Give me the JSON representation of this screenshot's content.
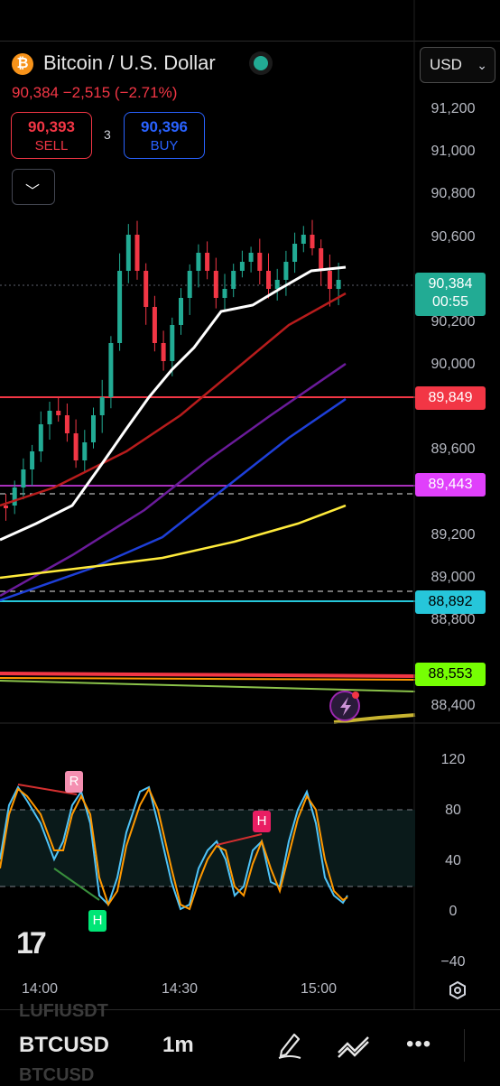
{
  "header": {
    "title": "Bitcoin / U.S. Dollar",
    "coin_symbol": "₿",
    "price_line": "90,384  −2,515 (−2.71%)",
    "currency": "USD"
  },
  "trade": {
    "sell_price": "90,393",
    "sell_label": "SELL",
    "spread": "3",
    "buy_price": "90,396",
    "buy_label": "BUY"
  },
  "price_axis": [
    "91,200",
    "91,000",
    "90,800",
    "90,600",
    "90,200",
    "90,000",
    "89,600",
    "89,200",
    "89,000",
    "88,800",
    "88,400"
  ],
  "price_tags": {
    "last": "90,384",
    "countdown": "00:55",
    "red_level": "89,849",
    "magenta_level": "89,443",
    "cyan_level": "88,892",
    "green_level": "88,553"
  },
  "osc_axis": [
    "120",
    "80",
    "40",
    "0",
    "−40"
  ],
  "osc_markers": {
    "r": "R",
    "h1": "H",
    "h2": "H"
  },
  "time_axis": [
    "14:00",
    "14:30",
    "15:00"
  ],
  "bottom": {
    "symbol_prev": "LUFIUSDT",
    "symbol": "BTCUSD",
    "symbol_next": "BTCUSD",
    "interval": "1m"
  },
  "colors": {
    "up": "#22ab94",
    "down": "#f23645",
    "buy": "#2962ff"
  },
  "icons": [
    "chevron-down-icon",
    "pencil-icon",
    "chart-compare-icon",
    "more-icon",
    "settings-hexagon-icon",
    "flash-alert-icon"
  ]
}
